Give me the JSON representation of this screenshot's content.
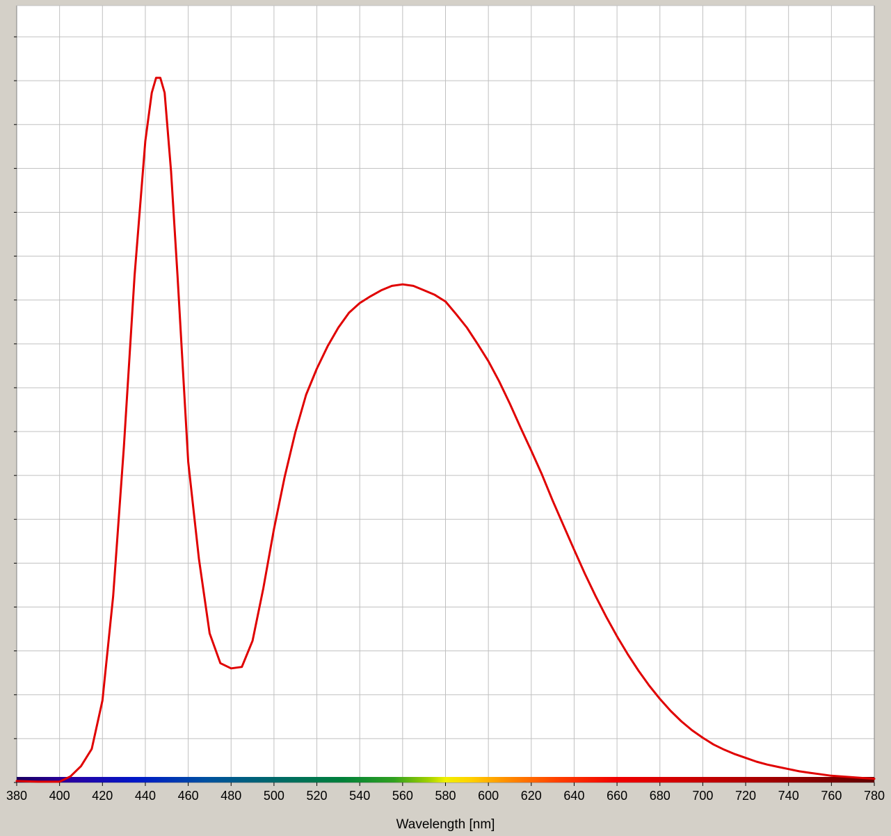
{
  "chart_data": {
    "type": "line",
    "title": "",
    "xlabel": "Wavelength [nm]",
    "ylabel": "",
    "xlim": [
      380,
      780
    ],
    "ylim": [
      0,
      1
    ],
    "x_ticks": [
      380,
      400,
      420,
      440,
      460,
      480,
      500,
      520,
      540,
      560,
      580,
      600,
      620,
      640,
      660,
      680,
      700,
      720,
      740,
      760,
      780
    ],
    "y_gridlines": 18,
    "grid": true,
    "legend": "none",
    "colors": {
      "line": "#e00000",
      "grid": "#c0c0c0",
      "plot_background": "#ffffff",
      "frame_background": "#d4d0c8"
    },
    "spectrum_bar": true,
    "series": [
      {
        "x": [
          380,
          390,
          400,
          405,
          410,
          415,
          420,
          425,
          430,
          435,
          440,
          443,
          445,
          447,
          449,
          452,
          455,
          460,
          465,
          470,
          475,
          480,
          485,
          490,
          495,
          500,
          505,
          510,
          515,
          520,
          525,
          530,
          535,
          540,
          545,
          550,
          555,
          560,
          565,
          570,
          575,
          580,
          585,
          590,
          595,
          600,
          605,
          610,
          615,
          620,
          625,
          630,
          635,
          640,
          645,
          650,
          655,
          660,
          665,
          670,
          675,
          680,
          685,
          690,
          695,
          700,
          705,
          710,
          715,
          720,
          725,
          730,
          735,
          740,
          745,
          750,
          755,
          760,
          765,
          770,
          775,
          780
        ],
        "y": [
          0.002,
          0.001,
          0.001,
          0.008,
          0.022,
          0.045,
          0.11,
          0.25,
          0.45,
          0.68,
          0.86,
          0.925,
          0.945,
          0.945,
          0.925,
          0.82,
          0.68,
          0.43,
          0.3,
          0.2,
          0.16,
          0.153,
          0.155,
          0.19,
          0.26,
          0.34,
          0.41,
          0.47,
          0.52,
          0.555,
          0.585,
          0.61,
          0.63,
          0.643,
          0.652,
          0.66,
          0.666,
          0.668,
          0.666,
          0.66,
          0.654,
          0.645,
          0.628,
          0.61,
          0.588,
          0.565,
          0.538,
          0.508,
          0.476,
          0.445,
          0.413,
          0.378,
          0.345,
          0.312,
          0.28,
          0.25,
          0.222,
          0.196,
          0.172,
          0.15,
          0.13,
          0.112,
          0.096,
          0.082,
          0.07,
          0.06,
          0.051,
          0.044,
          0.038,
          0.033,
          0.028,
          0.024,
          0.021,
          0.018,
          0.015,
          0.013,
          0.011,
          0.009,
          0.008,
          0.007,
          0.006,
          0.005
        ]
      }
    ]
  }
}
